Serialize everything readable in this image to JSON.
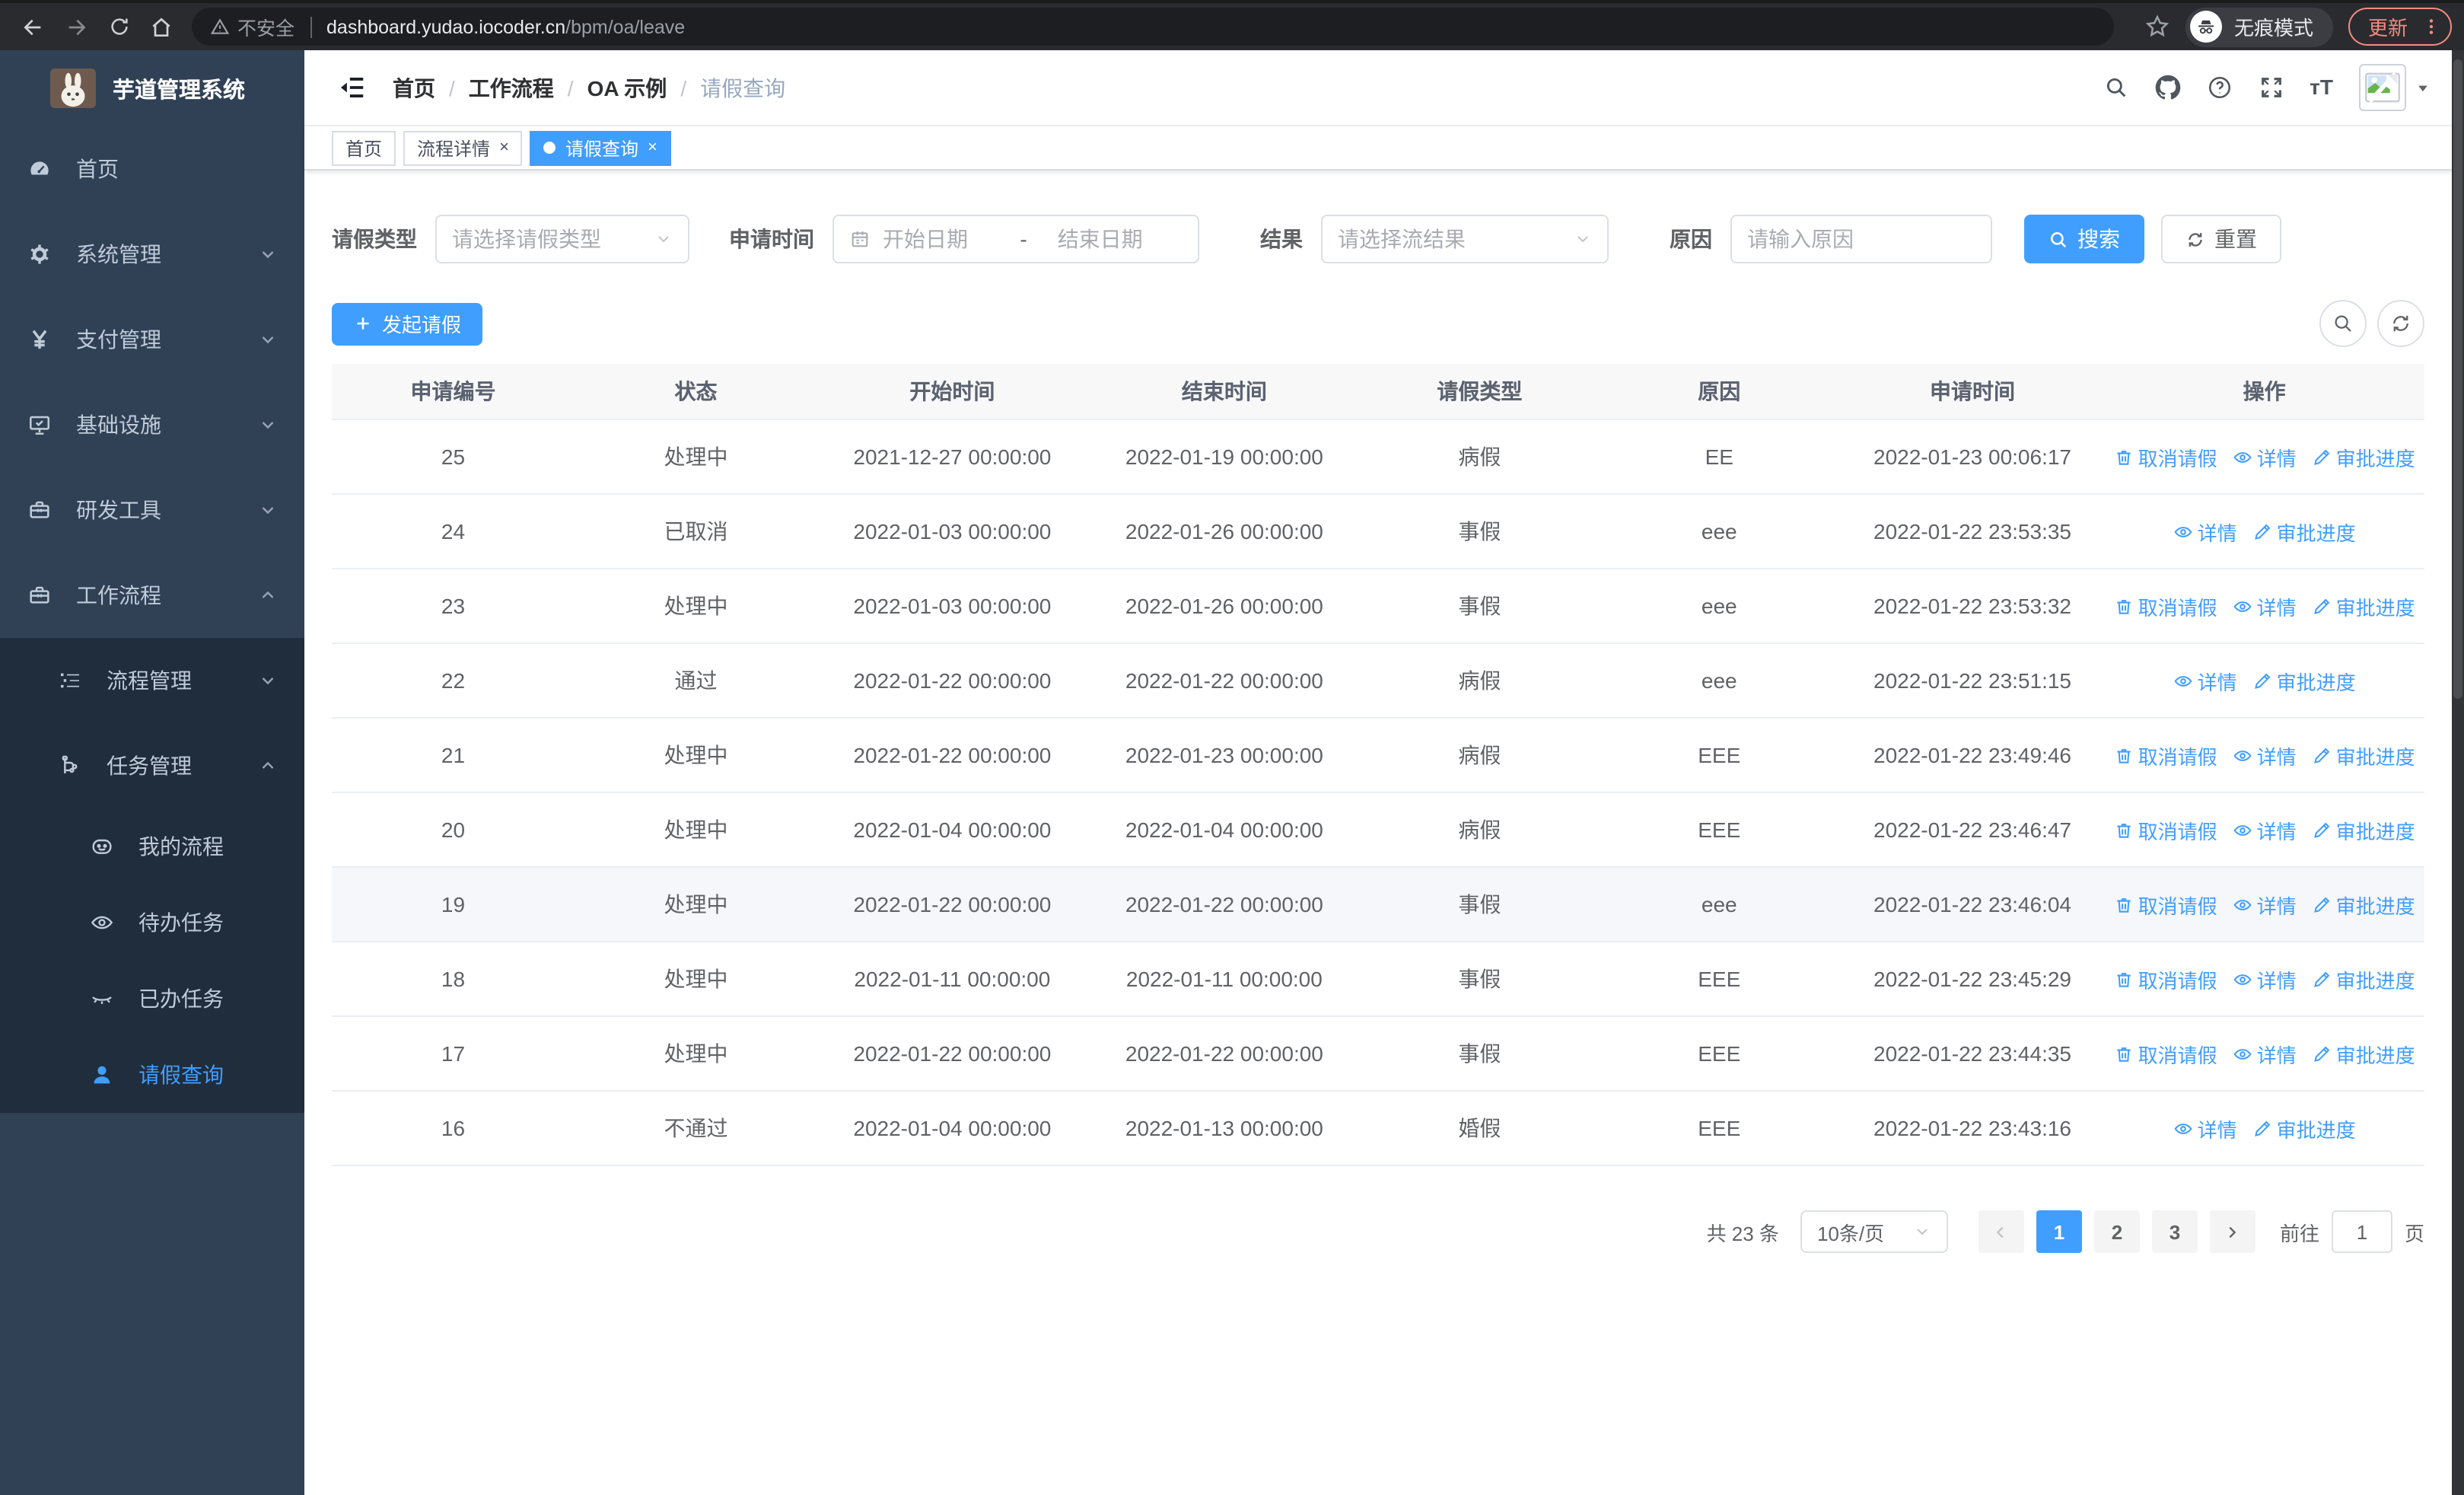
{
  "browser": {
    "security_warning": "不安全",
    "url_domain": "dashboard.yudao.iocoder.cn",
    "url_path": "/bpm/oa/leave",
    "incognito_label": "无痕模式",
    "update_label": "更新"
  },
  "colors": {
    "accent": "#409eff",
    "sidebar_bg": "#304156",
    "submenu_bg": "#1f2d3d",
    "update_accent": "#f28b82"
  },
  "icons": {
    "breadcrumb_fold": "fold-menu",
    "header_right": [
      "search-icon",
      "github-icon",
      "help-icon",
      "fullscreen-icon",
      "font-size-icon",
      "avatar",
      "caret-down-icon"
    ],
    "row_action_icons": {
      "cancel": "trash-icon",
      "detail": "eye-icon",
      "progress": "edit-icon"
    }
  },
  "sidebar": {
    "app_title": "芋道管理系统",
    "menu": [
      {
        "label": "首页",
        "icon": "dashboard-icon",
        "level": 1
      },
      {
        "label": "系统管理",
        "icon": "gear-icon",
        "level": 1,
        "arrow": "down"
      },
      {
        "label": "支付管理",
        "icon": "yen-icon",
        "level": 1,
        "arrow": "down"
      },
      {
        "label": "基础设施",
        "icon": "monitor-icon",
        "level": 1,
        "arrow": "down"
      },
      {
        "label": "研发工具",
        "icon": "toolbox-icon",
        "level": 1,
        "arrow": "down"
      },
      {
        "label": "工作流程",
        "icon": "briefcase-icon",
        "level": 1,
        "arrow": "up"
      },
      {
        "label": "流程管理",
        "icon": "list-tree-icon",
        "level": 2,
        "arrow": "down",
        "sub": true
      },
      {
        "label": "任务管理",
        "icon": "workflow-icon",
        "level": 2,
        "arrow": "up",
        "sub": true
      },
      {
        "label": "我的流程",
        "icon": "robot-face-icon",
        "level": 3,
        "sub": true
      },
      {
        "label": "待办任务",
        "icon": "eye-open-icon",
        "level": 3,
        "sub": true
      },
      {
        "label": "已办任务",
        "icon": "eye-closed-icon",
        "level": 3,
        "sub": true
      },
      {
        "label": "请假查询",
        "icon": "user-icon",
        "level": 3,
        "sub": true,
        "active": true
      }
    ]
  },
  "header": {
    "breadcrumb": [
      "首页",
      "工作流程",
      "OA 示例",
      "请假查询"
    ],
    "breadcrumb_separator": "/",
    "tabs": [
      {
        "label": "首页",
        "closable": false,
        "active": false
      },
      {
        "label": "流程详情",
        "closable": true,
        "active": false
      },
      {
        "label": "请假查询",
        "closable": true,
        "active": true
      }
    ]
  },
  "filters": {
    "type_label": "请假类型",
    "type_placeholder": "请选择请假类型",
    "time_label": "申请时间",
    "start_placeholder": "开始日期",
    "range_separator": "-",
    "end_placeholder": "结束日期",
    "result_label": "结果",
    "result_placeholder": "请选择流结果",
    "reason_label": "原因",
    "reason_placeholder": "请输入原因",
    "search_label": "搜索",
    "reset_label": "重置"
  },
  "toolbar": {
    "create_label": "发起请假"
  },
  "table": {
    "columns": [
      "申请编号",
      "状态",
      "开始时间",
      "结束时间",
      "请假类型",
      "原因",
      "申请时间",
      "操作"
    ],
    "action_labels": {
      "cancel": "取消请假",
      "detail": "详情",
      "progress": "审批进度"
    },
    "rows": [
      {
        "id": "25",
        "status": "处理中",
        "start": "2021-12-27 00:00:00",
        "end": "2022-01-19 00:00:00",
        "type": "病假",
        "reason": "EE",
        "applied": "2022-01-23 00:06:17",
        "actions": [
          "cancel",
          "detail",
          "progress"
        ]
      },
      {
        "id": "24",
        "status": "已取消",
        "start": "2022-01-03 00:00:00",
        "end": "2022-01-26 00:00:00",
        "type": "事假",
        "reason": "eee",
        "applied": "2022-01-22 23:53:35",
        "actions": [
          "detail",
          "progress"
        ]
      },
      {
        "id": "23",
        "status": "处理中",
        "start": "2022-01-03 00:00:00",
        "end": "2022-01-26 00:00:00",
        "type": "事假",
        "reason": "eee",
        "applied": "2022-01-22 23:53:32",
        "actions": [
          "cancel",
          "detail",
          "progress"
        ]
      },
      {
        "id": "22",
        "status": "通过",
        "start": "2022-01-22 00:00:00",
        "end": "2022-01-22 00:00:00",
        "type": "病假",
        "reason": "eee",
        "applied": "2022-01-22 23:51:15",
        "actions": [
          "detail",
          "progress"
        ]
      },
      {
        "id": "21",
        "status": "处理中",
        "start": "2022-01-22 00:00:00",
        "end": "2022-01-23 00:00:00",
        "type": "病假",
        "reason": "EEE",
        "applied": "2022-01-22 23:49:46",
        "actions": [
          "cancel",
          "detail",
          "progress"
        ]
      },
      {
        "id": "20",
        "status": "处理中",
        "start": "2022-01-04 00:00:00",
        "end": "2022-01-04 00:00:00",
        "type": "病假",
        "reason": "EEE",
        "applied": "2022-01-22 23:46:47",
        "actions": [
          "cancel",
          "detail",
          "progress"
        ]
      },
      {
        "id": "19",
        "status": "处理中",
        "start": "2022-01-22 00:00:00",
        "end": "2022-01-22 00:00:00",
        "type": "事假",
        "reason": "eee",
        "applied": "2022-01-22 23:46:04",
        "actions": [
          "cancel",
          "detail",
          "progress"
        ],
        "highlighted": true
      },
      {
        "id": "18",
        "status": "处理中",
        "start": "2022-01-11 00:00:00",
        "end": "2022-01-11 00:00:00",
        "type": "事假",
        "reason": "EEE",
        "applied": "2022-01-22 23:45:29",
        "actions": [
          "cancel",
          "detail",
          "progress"
        ]
      },
      {
        "id": "17",
        "status": "处理中",
        "start": "2022-01-22 00:00:00",
        "end": "2022-01-22 00:00:00",
        "type": "事假",
        "reason": "EEE",
        "applied": "2022-01-22 23:44:35",
        "actions": [
          "cancel",
          "detail",
          "progress"
        ]
      },
      {
        "id": "16",
        "status": "不通过",
        "start": "2022-01-04 00:00:00",
        "end": "2022-01-13 00:00:00",
        "type": "婚假",
        "reason": "EEE",
        "applied": "2022-01-22 23:43:16",
        "actions": [
          "detail",
          "progress"
        ]
      }
    ]
  },
  "pagination": {
    "total_label": "共 23 条",
    "page_size_label": "10条/页",
    "pages": [
      "1",
      "2",
      "3"
    ],
    "active_page": "1",
    "goto_label": "前往",
    "goto_value": "1",
    "goto_suffix": "页"
  }
}
